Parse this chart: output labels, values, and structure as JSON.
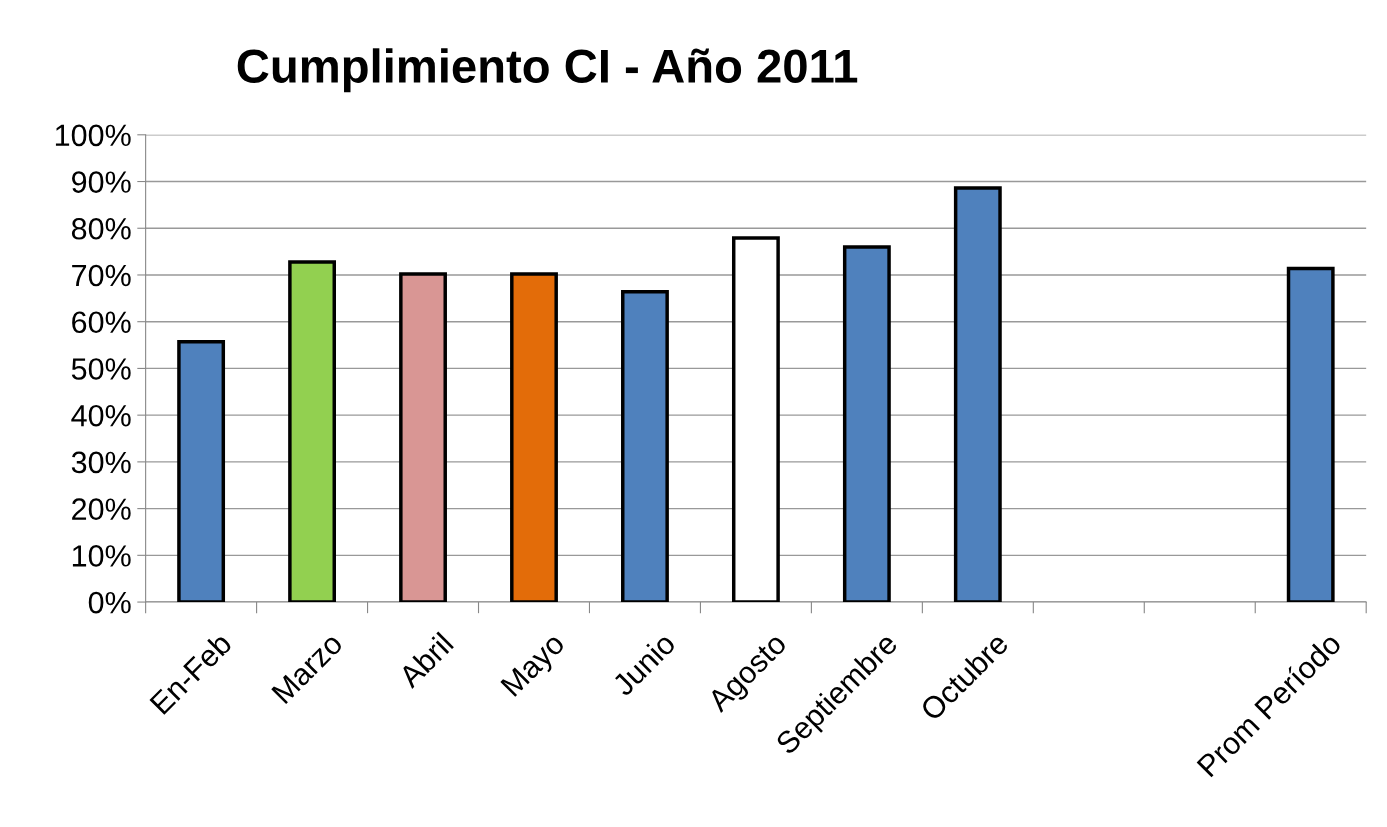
{
  "chart_data": {
    "type": "bar",
    "title": "Cumplimiento CI - Año 2011",
    "categories": [
      "En-Feb",
      "Marzo",
      "Abril",
      "Mayo",
      "Junio",
      "Agosto",
      "Septiembre",
      "Octubre",
      null,
      null,
      "Prom Período"
    ],
    "values": [
      55.7,
      72.8,
      70.2,
      70.2,
      66.4,
      77.9,
      76.0,
      88.6,
      null,
      null,
      71.4
    ],
    "colors": [
      "#4f81bd",
      "#92d050",
      "#d99694",
      "#e36c09",
      "#4f81bd",
      "#ffffff",
      "#4f81bd",
      "#4f81bd",
      "#4f81bd",
      "#4f81bd",
      "#4f81bd"
    ],
    "ylim": [
      0,
      100
    ],
    "yticks": [
      {
        "value": 0,
        "label": "0%"
      },
      {
        "value": 10,
        "label": "10%"
      },
      {
        "value": 20,
        "label": "20%"
      },
      {
        "value": 30,
        "label": "30%"
      },
      {
        "value": 40,
        "label": "40%"
      },
      {
        "value": 50,
        "label": "50%"
      },
      {
        "value": 60,
        "label": "60%"
      },
      {
        "value": 70,
        "label": "70%"
      },
      {
        "value": 80,
        "label": "80%"
      },
      {
        "value": 90,
        "label": "90%"
      },
      {
        "value": 100,
        "label": "100%"
      }
    ],
    "grid": "y",
    "legend": false
  }
}
